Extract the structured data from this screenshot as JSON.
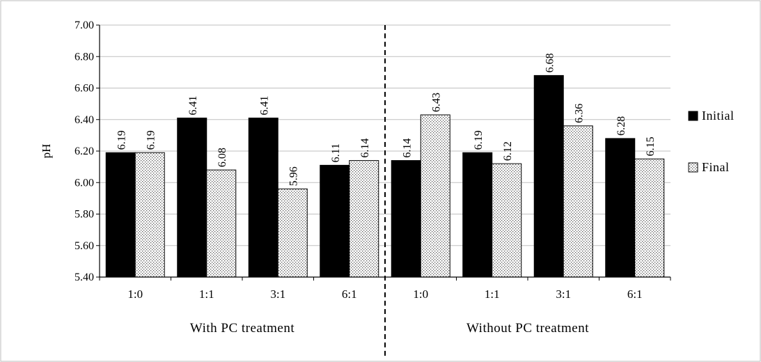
{
  "chart_data": {
    "type": "bar",
    "ylabel": "pH",
    "ylim": [
      5.4,
      7.0
    ],
    "yticks": [
      "5.40",
      "5.60",
      "5.80",
      "6.00",
      "6.20",
      "6.40",
      "6.60",
      "6.80",
      "7.00"
    ],
    "grid": true,
    "legend_position": "right",
    "groups": [
      {
        "label": "With PC treatment",
        "categories": [
          "1:0",
          "1:1",
          "3:1",
          "6:1"
        ]
      },
      {
        "label": "Without PC treatment",
        "categories": [
          "1:0",
          "1:1",
          "3:1",
          "6:1"
        ]
      }
    ],
    "categories": [
      "1:0",
      "1:1",
      "3:1",
      "6:1",
      "1:0",
      "1:1",
      "3:1",
      "6:1"
    ],
    "series": [
      {
        "name": "Initial",
        "color": "#000000",
        "pattern": "solid",
        "values": [
          6.19,
          6.41,
          6.41,
          6.11,
          6.14,
          6.19,
          6.68,
          6.28
        ],
        "labels": [
          "6.19",
          "6.41",
          "6.41",
          "6.11",
          "6.14",
          "6.19",
          "6.68",
          "6.28"
        ]
      },
      {
        "name": "Final",
        "color": "#ffffff",
        "pattern": "dotted",
        "values": [
          6.19,
          6.08,
          5.96,
          6.14,
          6.43,
          6.12,
          6.36,
          6.15
        ],
        "labels": [
          "6.19",
          "6.08",
          "5.96",
          "6.14",
          "6.43",
          "6.12",
          "6.36",
          "6.15"
        ]
      }
    ]
  }
}
